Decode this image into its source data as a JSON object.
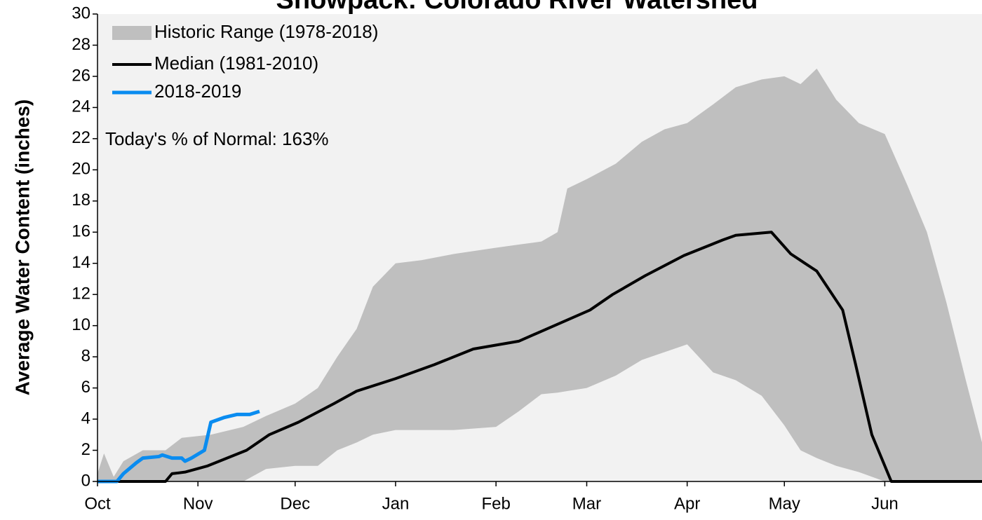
{
  "chart_data": {
    "type": "line",
    "title": "Snowpack: Colorado River Watershed",
    "ylabel": "Average Water Content (inches)",
    "annotation": "Today's % of Normal: 163%",
    "xlim": [
      0,
      273
    ],
    "ylim": [
      0,
      30
    ],
    "yticks": [
      0,
      2,
      4,
      6,
      8,
      10,
      12,
      14,
      16,
      18,
      20,
      22,
      24,
      26,
      28,
      30
    ],
    "xticks": [
      {
        "value": 0,
        "label": "Oct"
      },
      {
        "value": 31,
        "label": "Nov"
      },
      {
        "value": 61,
        "label": "Dec"
      },
      {
        "value": 92,
        "label": "Jan"
      },
      {
        "value": 123,
        "label": "Feb"
      },
      {
        "value": 151,
        "label": "Mar"
      },
      {
        "value": 182,
        "label": "Apr"
      },
      {
        "value": 212,
        "label": "May"
      },
      {
        "value": 243,
        "label": "Jun"
      }
    ],
    "background": "#f2f2f2",
    "series": [
      {
        "name": "Historic Range (1978-2018)",
        "color": "#bfbfbf",
        "type": "area",
        "x": [
          0,
          2,
          5,
          8,
          14,
          21,
          26,
          35,
          45,
          52,
          61,
          68,
          74,
          80,
          85,
          92,
          100,
          110,
          123,
          130,
          137,
          142,
          145,
          151,
          160,
          168,
          175,
          182,
          190,
          197,
          205,
          212,
          217,
          222,
          228,
          235,
          243,
          250,
          256,
          262,
          268,
          273
        ],
        "upper": [
          0.5,
          1.8,
          0.3,
          1.3,
          2,
          2,
          2.8,
          3,
          3.5,
          4.2,
          5,
          6,
          8,
          9.8,
          12.5,
          14,
          14.2,
          14.6,
          15,
          15.2,
          15.4,
          16,
          18.8,
          19.4,
          20.4,
          21.8,
          22.6,
          23,
          24.2,
          25.3,
          25.8,
          26,
          25.5,
          26.5,
          24.5,
          23,
          22.3,
          19,
          16,
          11.5,
          6.5,
          2.5
        ],
        "lower": [
          0,
          0,
          0,
          0,
          0,
          0,
          0,
          0,
          0,
          0.8,
          1,
          1,
          2,
          2.5,
          3,
          3.3,
          3.3,
          3.3,
          3.5,
          4.5,
          5.6,
          5.7,
          5.8,
          6,
          6.8,
          7.8,
          8.3,
          8.8,
          7,
          6.5,
          5.5,
          3.6,
          2,
          1.5,
          1,
          0.6,
          0,
          0,
          0,
          0,
          0,
          0
        ]
      },
      {
        "name": "Median (1981-2010)",
        "color": "#000000",
        "width": 4,
        "x": [
          0,
          21,
          23,
          27,
          34,
          46,
          53,
          62,
          73,
          80,
          92,
          104,
          116,
          130,
          141,
          152,
          159,
          169,
          181,
          193,
          197,
          208,
          214,
          222,
          230,
          234,
          239,
          244,
          245,
          273
        ],
        "values": [
          0,
          0,
          0.5,
          0.6,
          1,
          2,
          3,
          3.8,
          5,
          5.8,
          6.6,
          7.5,
          8.5,
          9,
          10,
          11,
          12,
          13.2,
          14.5,
          15.5,
          15.8,
          16,
          14.6,
          13.5,
          11,
          7.5,
          3,
          0.5,
          0,
          0
        ]
      },
      {
        "name": "2018-2019",
        "color": "#0a8cf0",
        "width": 5,
        "x": [
          0,
          6,
          8,
          12,
          14,
          19,
          20,
          23,
          26,
          27,
          29,
          33,
          35,
          39,
          43,
          47,
          50
        ],
        "values": [
          0,
          0,
          0.5,
          1.2,
          1.5,
          1.6,
          1.7,
          1.5,
          1.5,
          1.3,
          1.5,
          2,
          3.8,
          4.1,
          4.3,
          4.3,
          4.5
        ]
      }
    ]
  }
}
